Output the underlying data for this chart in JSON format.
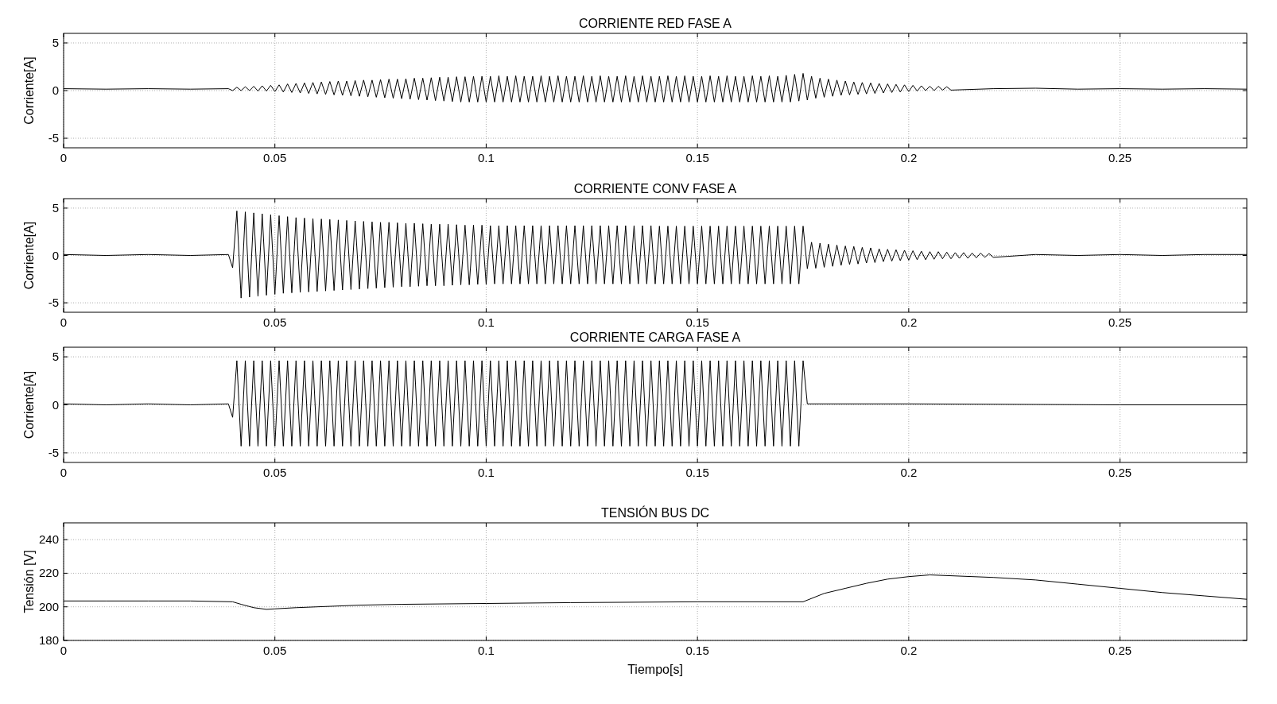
{
  "chart_data": [
    {
      "type": "line",
      "title": "CORRIENTE RED FASE A",
      "ylabel": "Corriente[A]",
      "xlim": [
        0,
        0.28
      ],
      "xticks": [
        0,
        0.05,
        0.1,
        0.15,
        0.2,
        0.25
      ],
      "ylim": [
        -6,
        6
      ],
      "yticks": [
        -5,
        0,
        5
      ],
      "grid": true,
      "x": [
        0,
        0.01,
        0.02,
        0.03,
        0.039,
        0.04,
        0.041,
        0.042,
        0.043,
        0.044,
        0.045,
        0.046,
        0.047,
        0.048,
        0.049,
        0.05,
        0.051,
        0.052,
        0.053,
        0.054,
        0.055,
        0.056,
        0.057,
        0.058,
        0.059,
        0.06,
        0.061,
        0.062,
        0.063,
        0.064,
        0.065,
        0.066,
        0.067,
        0.068,
        0.069,
        0.07,
        0.071,
        0.072,
        0.073,
        0.074,
        0.075,
        0.076,
        0.077,
        0.078,
        0.079,
        0.08,
        0.081,
        0.082,
        0.083,
        0.084,
        0.085,
        0.086,
        0.087,
        0.088,
        0.089,
        0.09,
        0.091,
        0.092,
        0.093,
        0.094,
        0.095,
        0.096,
        0.097,
        0.098,
        0.099,
        0.1,
        0.101,
        0.102,
        0.103,
        0.104,
        0.105,
        0.106,
        0.107,
        0.108,
        0.109,
        0.11,
        0.111,
        0.112,
        0.113,
        0.114,
        0.115,
        0.116,
        0.117,
        0.118,
        0.119,
        0.12,
        0.121,
        0.122,
        0.123,
        0.124,
        0.125,
        0.126,
        0.127,
        0.128,
        0.129,
        0.13,
        0.131,
        0.132,
        0.133,
        0.134,
        0.135,
        0.136,
        0.137,
        0.138,
        0.139,
        0.14,
        0.141,
        0.142,
        0.143,
        0.144,
        0.145,
        0.146,
        0.147,
        0.148,
        0.149,
        0.15,
        0.151,
        0.152,
        0.153,
        0.154,
        0.155,
        0.156,
        0.157,
        0.158,
        0.159,
        0.16,
        0.161,
        0.162,
        0.163,
        0.164,
        0.165,
        0.166,
        0.167,
        0.168,
        0.169,
        0.17,
        0.171,
        0.172,
        0.173,
        0.174,
        0.175,
        0.176,
        0.177,
        0.178,
        0.179,
        0.18,
        0.181,
        0.182,
        0.183,
        0.184,
        0.185,
        0.186,
        0.187,
        0.188,
        0.189,
        0.19,
        0.191,
        0.192,
        0.193,
        0.194,
        0.195,
        0.196,
        0.197,
        0.198,
        0.199,
        0.2,
        0.201,
        0.202,
        0.203,
        0.204,
        0.205,
        0.206,
        0.207,
        0.208,
        0.209,
        0.21,
        0.22,
        0.23,
        0.24,
        0.25,
        0.26,
        0.27,
        0.28
      ],
      "series": [
        {
          "color": "#000000",
          "values": [
            0.2,
            0.15,
            0.2,
            0.15,
            0.2,
            0.0,
            0.35,
            0.0,
            0.4,
            0.0,
            0.45,
            -0.05,
            0.5,
            -0.05,
            0.55,
            -0.1,
            0.6,
            -0.15,
            0.7,
            -0.2,
            0.75,
            -0.25,
            0.8,
            -0.3,
            0.85,
            -0.35,
            0.9,
            -0.4,
            0.95,
            -0.45,
            1.0,
            -0.5,
            1.0,
            -0.55,
            1.05,
            -0.6,
            1.1,
            -0.65,
            1.1,
            -0.7,
            1.15,
            -0.75,
            1.2,
            -0.8,
            1.2,
            -0.85,
            1.25,
            -0.9,
            1.3,
            -0.95,
            1.3,
            -1.0,
            1.35,
            -1.05,
            1.4,
            -1.1,
            1.4,
            -1.15,
            1.45,
            -1.2,
            1.45,
            -1.2,
            1.5,
            -1.2,
            1.5,
            -1.2,
            1.5,
            -1.2,
            1.55,
            -1.2,
            1.5,
            -1.2,
            1.55,
            -1.2,
            1.5,
            -1.2,
            1.5,
            -1.2,
            1.55,
            -1.2,
            1.5,
            -1.2,
            1.55,
            -1.2,
            1.5,
            -1.2,
            1.5,
            -1.2,
            1.55,
            -1.2,
            1.5,
            -1.2,
            1.55,
            -1.2,
            1.5,
            -1.2,
            1.5,
            -1.2,
            1.55,
            -1.2,
            1.5,
            -1.2,
            1.55,
            -1.2,
            1.5,
            -1.2,
            1.5,
            -1.2,
            1.55,
            -1.2,
            1.5,
            -1.2,
            1.55,
            -1.2,
            1.5,
            -1.2,
            1.5,
            -1.2,
            1.55,
            -1.2,
            1.5,
            -1.2,
            1.55,
            -1.2,
            1.5,
            -1.2,
            1.5,
            -1.2,
            1.55,
            -1.2,
            1.5,
            -1.2,
            1.55,
            -1.2,
            1.5,
            -1.2,
            1.6,
            -1.2,
            1.7,
            -1.1,
            1.8,
            -1.0,
            1.5,
            -0.8,
            1.3,
            -0.7,
            1.2,
            -0.6,
            1.1,
            -0.5,
            1.0,
            -0.45,
            0.9,
            -0.4,
            0.85,
            -0.35,
            0.8,
            -0.3,
            0.75,
            -0.25,
            0.7,
            -0.2,
            0.65,
            -0.15,
            0.6,
            -0.1,
            0.55,
            -0.05,
            0.5,
            0.0,
            0.45,
            0.0,
            0.45,
            0.05,
            0.4,
            0.05,
            0.2,
            0.25,
            0.15,
            0.2,
            0.15,
            0.2,
            0.15
          ]
        }
      ]
    },
    {
      "type": "line",
      "title": "CORRIENTE CONV FASE A",
      "ylabel": "Corriente[A]",
      "xlim": [
        0,
        0.28
      ],
      "xticks": [
        0,
        0.05,
        0.1,
        0.15,
        0.2,
        0.25
      ],
      "ylim": [
        -6,
        6
      ],
      "yticks": [
        -5,
        0,
        5
      ],
      "grid": true,
      "x": [
        0,
        0.01,
        0.02,
        0.03,
        0.039,
        0.04,
        0.041,
        0.042,
        0.043,
        0.044,
        0.045,
        0.046,
        0.047,
        0.048,
        0.049,
        0.05,
        0.051,
        0.052,
        0.053,
        0.054,
        0.055,
        0.056,
        0.057,
        0.058,
        0.059,
        0.06,
        0.061,
        0.062,
        0.063,
        0.064,
        0.065,
        0.066,
        0.067,
        0.068,
        0.069,
        0.07,
        0.071,
        0.072,
        0.073,
        0.074,
        0.075,
        0.076,
        0.077,
        0.078,
        0.079,
        0.08,
        0.081,
        0.082,
        0.083,
        0.084,
        0.085,
        0.086,
        0.087,
        0.088,
        0.089,
        0.09,
        0.091,
        0.092,
        0.093,
        0.094,
        0.095,
        0.096,
        0.097,
        0.098,
        0.099,
        0.1,
        0.101,
        0.102,
        0.103,
        0.104,
        0.105,
        0.106,
        0.107,
        0.108,
        0.109,
        0.11,
        0.111,
        0.112,
        0.113,
        0.114,
        0.115,
        0.116,
        0.117,
        0.118,
        0.119,
        0.12,
        0.121,
        0.122,
        0.123,
        0.124,
        0.125,
        0.126,
        0.127,
        0.128,
        0.129,
        0.13,
        0.131,
        0.132,
        0.133,
        0.134,
        0.135,
        0.136,
        0.137,
        0.138,
        0.139,
        0.14,
        0.141,
        0.142,
        0.143,
        0.144,
        0.145,
        0.146,
        0.147,
        0.148,
        0.149,
        0.15,
        0.151,
        0.152,
        0.153,
        0.154,
        0.155,
        0.156,
        0.157,
        0.158,
        0.159,
        0.16,
        0.161,
        0.162,
        0.163,
        0.164,
        0.165,
        0.166,
        0.167,
        0.168,
        0.169,
        0.17,
        0.171,
        0.172,
        0.173,
        0.174,
        0.175,
        0.176,
        0.177,
        0.178,
        0.179,
        0.18,
        0.181,
        0.182,
        0.183,
        0.184,
        0.185,
        0.186,
        0.187,
        0.188,
        0.189,
        0.19,
        0.191,
        0.192,
        0.193,
        0.194,
        0.195,
        0.196,
        0.197,
        0.198,
        0.199,
        0.2,
        0.201,
        0.202,
        0.203,
        0.204,
        0.205,
        0.206,
        0.207,
        0.208,
        0.209,
        0.21,
        0.211,
        0.212,
        0.213,
        0.214,
        0.215,
        0.216,
        0.217,
        0.218,
        0.219,
        0.22,
        0.23,
        0.24,
        0.25,
        0.26,
        0.27,
        0.28
      ],
      "series": [
        {
          "color": "#000000",
          "values": [
            0.1,
            0.0,
            0.1,
            0.0,
            0.1,
            -1.3,
            4.7,
            -4.5,
            4.6,
            -4.4,
            4.5,
            -4.3,
            4.4,
            -4.2,
            4.3,
            -4.1,
            4.2,
            -4.0,
            4.1,
            -3.95,
            4.0,
            -3.9,
            3.95,
            -3.85,
            3.9,
            -3.8,
            3.85,
            -3.75,
            3.8,
            -3.7,
            3.75,
            -3.65,
            3.7,
            -3.6,
            3.65,
            -3.55,
            3.6,
            -3.5,
            3.55,
            -3.45,
            3.5,
            -3.4,
            3.5,
            -3.35,
            3.45,
            -3.3,
            3.4,
            -3.3,
            3.4,
            -3.25,
            3.35,
            -3.2,
            3.3,
            -3.2,
            3.3,
            -3.2,
            3.3,
            -3.15,
            3.25,
            -3.1,
            3.2,
            -3.1,
            3.2,
            -3.05,
            3.2,
            -3.05,
            3.15,
            -3.0,
            3.15,
            -3.0,
            3.15,
            -3.0,
            3.15,
            -3.0,
            3.15,
            -3.0,
            3.15,
            -3.0,
            3.15,
            -3.0,
            3.15,
            -3.0,
            3.15,
            -3.0,
            3.15,
            -3.0,
            3.15,
            -3.0,
            3.15,
            -3.0,
            3.15,
            -3.0,
            3.15,
            -3.0,
            3.15,
            -3.0,
            3.15,
            -3.0,
            3.15,
            -3.0,
            3.15,
            -3.0,
            3.15,
            -3.0,
            3.15,
            -3.0,
            3.1,
            -3.0,
            3.1,
            -3.0,
            3.1,
            -3.0,
            3.1,
            -3.0,
            3.1,
            -3.0,
            3.1,
            -3.0,
            3.1,
            -3.0,
            3.1,
            -3.0,
            3.1,
            -3.0,
            3.1,
            -3.0,
            3.1,
            -3.0,
            3.1,
            -3.0,
            3.1,
            -3.0,
            3.1,
            -3.0,
            3.1,
            -3.0,
            3.1,
            -3.0,
            3.1,
            -3.0,
            3.1,
            -1.4,
            1.4,
            -1.35,
            1.3,
            -1.25,
            1.2,
            -1.15,
            1.1,
            -1.05,
            1.0,
            -0.95,
            0.95,
            -0.9,
            0.85,
            -0.8,
            0.8,
            -0.75,
            0.7,
            -0.65,
            0.65,
            -0.6,
            0.6,
            -0.55,
            0.55,
            -0.5,
            0.5,
            -0.45,
            0.45,
            -0.45,
            0.4,
            -0.4,
            0.4,
            -0.35,
            0.35,
            -0.35,
            0.3,
            -0.3,
            0.3,
            -0.3,
            0.25,
            -0.25,
            0.25,
            -0.2,
            0.2,
            -0.2,
            0.1,
            0.0,
            0.1,
            0.0,
            0.1,
            0.1
          ]
        }
      ]
    },
    {
      "type": "line",
      "title": "CORRIENTE CARGA FASE A",
      "ylabel": "Corriente[A]",
      "xlim": [
        0,
        0.28
      ],
      "xticks": [
        0,
        0.05,
        0.1,
        0.15,
        0.2,
        0.25
      ],
      "ylim": [
        -6,
        6
      ],
      "yticks": [
        -5,
        0,
        5
      ],
      "grid": true,
      "x": [
        0,
        0.01,
        0.02,
        0.03,
        0.039,
        0.04,
        0.041,
        0.042,
        0.043,
        0.044,
        0.045,
        0.046,
        0.047,
        0.048,
        0.049,
        0.05,
        0.051,
        0.052,
        0.053,
        0.054,
        0.055,
        0.056,
        0.057,
        0.058,
        0.059,
        0.06,
        0.061,
        0.062,
        0.063,
        0.064,
        0.065,
        0.066,
        0.067,
        0.068,
        0.069,
        0.07,
        0.071,
        0.072,
        0.073,
        0.074,
        0.075,
        0.076,
        0.077,
        0.078,
        0.079,
        0.08,
        0.081,
        0.082,
        0.083,
        0.084,
        0.085,
        0.086,
        0.087,
        0.088,
        0.089,
        0.09,
        0.091,
        0.092,
        0.093,
        0.094,
        0.095,
        0.096,
        0.097,
        0.098,
        0.099,
        0.1,
        0.101,
        0.102,
        0.103,
        0.104,
        0.105,
        0.106,
        0.107,
        0.108,
        0.109,
        0.11,
        0.111,
        0.112,
        0.113,
        0.114,
        0.115,
        0.116,
        0.117,
        0.118,
        0.119,
        0.12,
        0.121,
        0.122,
        0.123,
        0.124,
        0.125,
        0.126,
        0.127,
        0.128,
        0.129,
        0.13,
        0.131,
        0.132,
        0.133,
        0.134,
        0.135,
        0.136,
        0.137,
        0.138,
        0.139,
        0.14,
        0.141,
        0.142,
        0.143,
        0.144,
        0.145,
        0.146,
        0.147,
        0.148,
        0.149,
        0.15,
        0.151,
        0.152,
        0.153,
        0.154,
        0.155,
        0.156,
        0.157,
        0.158,
        0.159,
        0.16,
        0.161,
        0.162,
        0.163,
        0.164,
        0.165,
        0.166,
        0.167,
        0.168,
        0.169,
        0.17,
        0.171,
        0.172,
        0.173,
        0.174,
        0.175,
        0.176,
        0.2,
        0.25,
        0.28
      ],
      "series": [
        {
          "color": "#000000",
          "values": [
            0.1,
            0.0,
            0.1,
            0.0,
            0.1,
            -1.3,
            4.6,
            -4.3,
            4.6,
            -4.3,
            4.6,
            -4.3,
            4.6,
            -4.3,
            4.6,
            -4.3,
            4.6,
            -4.3,
            4.6,
            -4.3,
            4.6,
            -4.3,
            4.6,
            -4.3,
            4.6,
            -4.3,
            4.6,
            -4.3,
            4.6,
            -4.3,
            4.6,
            -4.3,
            4.6,
            -4.3,
            4.6,
            -4.3,
            4.6,
            -4.3,
            4.6,
            -4.3,
            4.6,
            -4.3,
            4.6,
            -4.3,
            4.6,
            -4.3,
            4.6,
            -4.3,
            4.6,
            -4.3,
            4.6,
            -4.3,
            4.6,
            -4.3,
            4.6,
            -4.3,
            4.6,
            -4.3,
            4.6,
            -4.3,
            4.6,
            -4.3,
            4.6,
            -4.3,
            4.6,
            -4.3,
            4.6,
            -4.3,
            4.6,
            -4.3,
            4.6,
            -4.3,
            4.6,
            -4.3,
            4.6,
            -4.3,
            4.6,
            -4.3,
            4.6,
            -4.3,
            4.6,
            -4.3,
            4.6,
            -4.3,
            4.6,
            -4.3,
            4.6,
            -4.3,
            4.6,
            -4.3,
            4.6,
            -4.3,
            4.6,
            -4.3,
            4.6,
            -4.3,
            4.6,
            -4.3,
            4.6,
            -4.3,
            4.6,
            -4.3,
            4.6,
            -4.3,
            4.6,
            -4.3,
            4.6,
            -4.3,
            4.6,
            -4.3,
            4.6,
            -4.3,
            4.6,
            -4.3,
            4.6,
            -4.3,
            4.6,
            -4.3,
            4.6,
            -4.3,
            4.6,
            -4.3,
            4.6,
            -4.3,
            4.6,
            -4.3,
            4.6,
            -4.3,
            4.6,
            -4.3,
            4.6,
            -4.3,
            4.6,
            -4.3,
            4.6,
            -4.3,
            4.6,
            -4.3,
            4.6,
            -4.3,
            4.6,
            0.1,
            0.1,
            0.0,
            0.0
          ]
        }
      ]
    },
    {
      "type": "line",
      "title": "TENSIÓN BUS DC",
      "xlabel": "Tiempo[s]",
      "ylabel": "Tensión [V]",
      "xlim": [
        0,
        0.28
      ],
      "xticks": [
        0,
        0.05,
        0.1,
        0.15,
        0.2,
        0.25
      ],
      "ylim": [
        180,
        250
      ],
      "yticks": [
        180,
        200,
        220,
        240
      ],
      "grid": true,
      "x": [
        0,
        0.01,
        0.02,
        0.03,
        0.04,
        0.042,
        0.045,
        0.048,
        0.05,
        0.055,
        0.06,
        0.07,
        0.08,
        0.1,
        0.12,
        0.15,
        0.175,
        0.18,
        0.185,
        0.19,
        0.195,
        0.2,
        0.205,
        0.21,
        0.22,
        0.23,
        0.24,
        0.25,
        0.26,
        0.27,
        0.28
      ],
      "series": [
        {
          "color": "#000000",
          "values": [
            203.5,
            203.5,
            203.5,
            203.5,
            203,
            201.5,
            199.5,
            198.5,
            198.8,
            199.5,
            200,
            201,
            201.5,
            202,
            202.5,
            203,
            203,
            208,
            211,
            214,
            216.5,
            218,
            219,
            218.5,
            217.5,
            216,
            213.5,
            211,
            208.5,
            206.5,
            204.5
          ]
        }
      ]
    }
  ]
}
